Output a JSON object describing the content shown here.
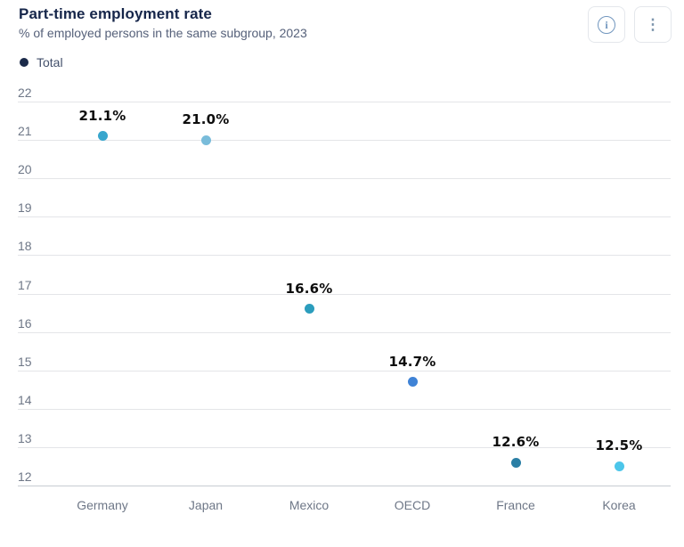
{
  "header": {
    "title": "Part-time employment rate",
    "subtitle": "% of employed persons in the same subgroup, 2023"
  },
  "toolbar": {
    "info_icon_glyph": "i",
    "menu_icon_glyph": "⋮"
  },
  "legend": {
    "items": [
      {
        "label": "Total",
        "color": "#1b2a4a"
      }
    ]
  },
  "chart_data": {
    "type": "scatter",
    "title": "Part-time employment rate",
    "subtitle": "% of employed persons in the same subgroup, 2023",
    "series_name": "Total",
    "categories": [
      "Germany",
      "Japan",
      "Mexico",
      "OECD",
      "France",
      "Korea"
    ],
    "values": [
      21.1,
      21.0,
      16.6,
      14.7,
      12.6,
      12.5
    ],
    "value_labels": [
      "21.1%",
      "21.0%",
      "16.6%",
      "14.7%",
      "12.6%",
      "12.5%"
    ],
    "point_colors": [
      "#38a6cd",
      "#79bcda",
      "#2b9dbd",
      "#3f83d6",
      "#2a7fa5",
      "#4cc6ea"
    ],
    "xlabel": "",
    "ylabel": "",
    "ylim": [
      12,
      22
    ],
    "yticks": [
      22,
      21,
      20,
      19,
      18,
      17,
      16,
      15,
      14,
      13,
      12
    ],
    "grid": true,
    "legend_position": "top-left"
  }
}
